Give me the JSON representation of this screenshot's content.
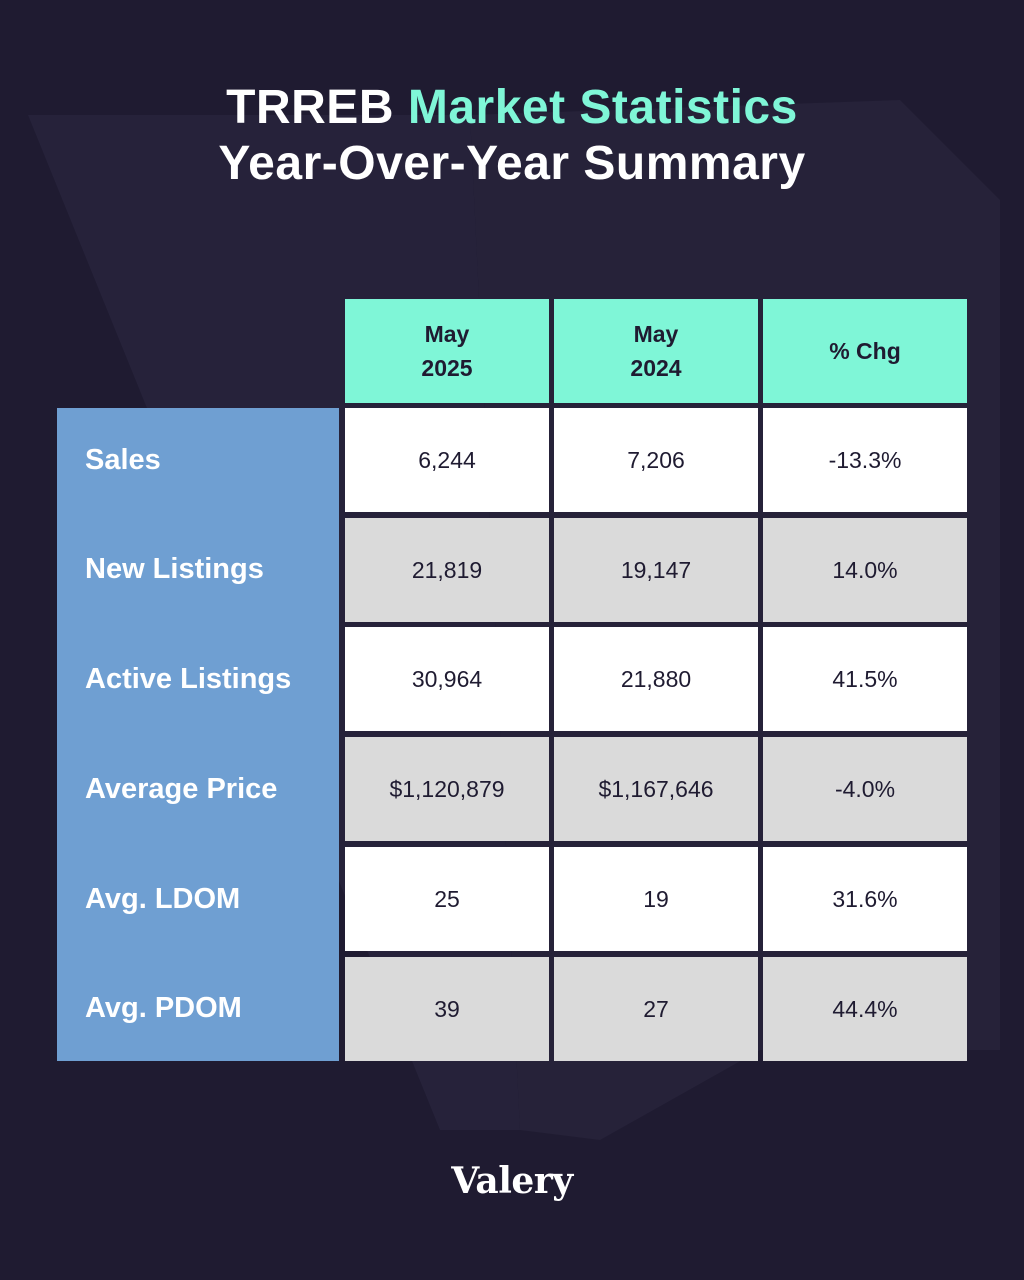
{
  "title": {
    "prefix": "TRREB",
    "accent": "Market Statistics",
    "line2": "Year-Over-Year Summary"
  },
  "table": {
    "columns": [
      "May\n2025",
      "May\n2024",
      "% Chg"
    ],
    "rows": [
      {
        "label": "Sales",
        "cells": [
          "6,244",
          "7,206",
          "-13.3%"
        ]
      },
      {
        "label": "New Listings",
        "cells": [
          "21,819",
          "19,147",
          "14.0%"
        ]
      },
      {
        "label": "Active Listings",
        "cells": [
          "30,964",
          "21,880",
          "41.5%"
        ]
      },
      {
        "label": "Average Price",
        "cells": [
          "$1,120,879",
          "$1,167,646",
          "-4.0%"
        ]
      },
      {
        "label": "Avg. LDOM",
        "cells": [
          "25",
          "19",
          "31.6%"
        ]
      },
      {
        "label": "Avg. PDOM",
        "cells": [
          "39",
          "27",
          "44.4%"
        ]
      }
    ]
  },
  "brand": {
    "logo_text": "Valery"
  },
  "colors": {
    "background": "#1f1b31",
    "accent": "#7ff6d7",
    "label_column": "#6f9fd2",
    "row_white": "#ffffff",
    "row_gray": "#dadada"
  }
}
